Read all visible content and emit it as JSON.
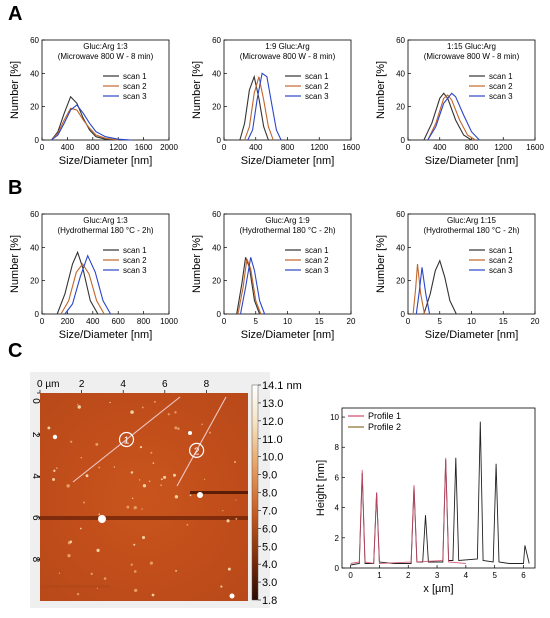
{
  "panels": {
    "a": "A",
    "b": "B",
    "c": "C"
  },
  "colors": {
    "scan1": "#333333",
    "scan2": "#c0662a",
    "scan3": "#2a46c8",
    "profile1": "#d04a6a",
    "profile2": "#8a6a2a"
  },
  "chart_data": [
    {
      "type": "line",
      "panel": "A",
      "title": "Gluc:Arg 1:3",
      "subtitle": "(Microwave 800 W - 8 min)",
      "xlabel": "Size/Diameter [nm]",
      "ylabel": "Number [%]",
      "xlim": [
        0,
        2000
      ],
      "ylim": [
        0,
        60
      ],
      "xticks": [
        "0",
        "400",
        "800",
        "1200",
        "1600",
        "2000"
      ],
      "yticks": [
        "0",
        "20",
        "40",
        "60"
      ],
      "legend_position": "right",
      "series": [
        {
          "name": "scan 1",
          "x": [
            150,
            250,
            350,
            450,
            550,
            650,
            750,
            850,
            1000,
            1200
          ],
          "y": [
            0,
            5,
            16,
            26,
            22,
            13,
            6,
            2,
            0.5,
            0
          ]
        },
        {
          "name": "scan 2",
          "x": [
            150,
            250,
            350,
            450,
            550,
            650,
            750,
            850,
            1000,
            1200
          ],
          "y": [
            0,
            4,
            12,
            19,
            18,
            12,
            7,
            3,
            1,
            0
          ]
        },
        {
          "name": "scan 3",
          "x": [
            150,
            250,
            350,
            450,
            550,
            650,
            750,
            850,
            1000,
            1200,
            1400
          ],
          "y": [
            0,
            3,
            10,
            18,
            21,
            16,
            10,
            5,
            2,
            0.5,
            0
          ]
        }
      ]
    },
    {
      "type": "line",
      "panel": "A",
      "title": "1:9 Gluc:Arg",
      "subtitle": "(Microwave 800 W - 8 min)",
      "xlabel": "Size/Diameter [nm]",
      "ylabel": "Number [%]",
      "xlim": [
        0,
        1600
      ],
      "ylim": [
        0,
        60
      ],
      "xticks": [
        "0",
        "400",
        "800",
        "1200",
        "1600"
      ],
      "yticks": [
        "0",
        "20",
        "40",
        "60"
      ],
      "legend_position": "right",
      "series": [
        {
          "name": "scan 1",
          "x": [
            200,
            260,
            320,
            380,
            440,
            500,
            560
          ],
          "y": [
            0,
            10,
            30,
            38,
            25,
            8,
            0
          ]
        },
        {
          "name": "scan 2",
          "x": [
            260,
            320,
            380,
            440,
            500,
            560,
            620
          ],
          "y": [
            0,
            8,
            28,
            38,
            24,
            8,
            0
          ]
        },
        {
          "name": "scan 3",
          "x": [
            300,
            360,
            420,
            480,
            540,
            600,
            660,
            720
          ],
          "y": [
            0,
            6,
            25,
            40,
            38,
            22,
            6,
            0
          ]
        }
      ]
    },
    {
      "type": "line",
      "panel": "A",
      "title": "1:15 Gluc:Arg",
      "subtitle": "(Microwave 800 W - 8 min)",
      "xlabel": "Size/Diameter [nm]",
      "ylabel": "Number [%]",
      "xlim": [
        0,
        1600
      ],
      "ylim": [
        0,
        60
      ],
      "xticks": [
        "0",
        "400",
        "800",
        "1200",
        "1600"
      ],
      "yticks": [
        "0",
        "20",
        "40",
        "60"
      ],
      "legend_position": "right",
      "series": [
        {
          "name": "scan 1",
          "x": [
            200,
            300,
            400,
            450,
            500,
            600,
            700,
            800
          ],
          "y": [
            0,
            10,
            25,
            28,
            25,
            12,
            3,
            0
          ]
        },
        {
          "name": "scan 2",
          "x": [
            250,
            350,
            450,
            500,
            550,
            650,
            750,
            850
          ],
          "y": [
            0,
            10,
            25,
            27,
            24,
            12,
            3,
            0
          ]
        },
        {
          "name": "scan 3",
          "x": [
            250,
            350,
            450,
            550,
            600,
            700,
            800,
            900
          ],
          "y": [
            0,
            8,
            22,
            28,
            26,
            15,
            5,
            0
          ]
        }
      ]
    },
    {
      "type": "line",
      "panel": "B",
      "title": "Gluc:Arg 1:3",
      "subtitle": "(Hydrothermal 180 °C - 2h)",
      "xlabel": "Size/Diameter [nm]",
      "ylabel": "Number [%]",
      "xlim": [
        0,
        1000
      ],
      "ylim": [
        0,
        60
      ],
      "xticks": [
        "0",
        "200",
        "400",
        "600",
        "800",
        "1000"
      ],
      "yticks": [
        "0",
        "20",
        "40",
        "60"
      ],
      "legend_position": "right",
      "series": [
        {
          "name": "scan 1",
          "x": [
            120,
            180,
            240,
            280,
            320,
            380,
            440
          ],
          "y": [
            0,
            12,
            30,
            37,
            28,
            8,
            0
          ]
        },
        {
          "name": "scan 2",
          "x": [
            150,
            210,
            270,
            320,
            370,
            430,
            490
          ],
          "y": [
            0,
            8,
            25,
            30,
            24,
            8,
            0
          ]
        },
        {
          "name": "scan 3",
          "x": [
            180,
            240,
            300,
            360,
            420,
            480,
            540
          ],
          "y": [
            0,
            6,
            22,
            35,
            25,
            8,
            0
          ]
        }
      ]
    },
    {
      "type": "line",
      "panel": "B",
      "title": "Gluc:Arg 1:9",
      "subtitle": "(Hydrothermal 180 °C - 2h)",
      "xlabel": "Size/Diameter [nm]",
      "ylabel": "Number [%]",
      "xlim": [
        0,
        20
      ],
      "ylim": [
        0,
        60
      ],
      "xticks": [
        "0",
        "5",
        "10",
        "15",
        "20"
      ],
      "yticks": [
        "0",
        "20",
        "40",
        "60"
      ],
      "legend_position": "right",
      "series": [
        {
          "name": "scan 1",
          "x": [
            2,
            2.8,
            3.4,
            4,
            4.8,
            5.6
          ],
          "y": [
            0,
            18,
            34,
            28,
            8,
            0
          ]
        },
        {
          "name": "scan 2",
          "x": [
            2.2,
            3,
            3.6,
            4.2,
            5,
            5.8
          ],
          "y": [
            0,
            16,
            33,
            27,
            8,
            0
          ]
        },
        {
          "name": "scan 3",
          "x": [
            2.6,
            3.4,
            4.2,
            4.8,
            5.6,
            6.4
          ],
          "y": [
            0,
            16,
            34,
            26,
            8,
            0
          ]
        }
      ]
    },
    {
      "type": "line",
      "panel": "B",
      "title": "Gluc:Arg 1:15",
      "subtitle": "(Hydrothermal 180 °C - 2h)",
      "xlabel": "Size/Diameter [nm]",
      "ylabel": "Number [%]",
      "xlim": [
        0,
        20
      ],
      "ylim": [
        0,
        60
      ],
      "xticks": [
        "0",
        "5",
        "10",
        "15",
        "20"
      ],
      "yticks": [
        "0",
        "20",
        "40",
        "60"
      ],
      "legend_position": "right",
      "series": [
        {
          "name": "scan 1",
          "x": [
            2.5,
            3.5,
            4.3,
            5,
            5.8,
            6.6,
            7.6
          ],
          "y": [
            0,
            12,
            26,
            32,
            22,
            8,
            0
          ]
        },
        {
          "name": "scan 2",
          "x": [
            0.8,
            1.2,
            1.5,
            2,
            2.6
          ],
          "y": [
            0,
            15,
            30,
            12,
            0
          ]
        },
        {
          "name": "scan 3",
          "x": [
            1.3,
            1.8,
            2.2,
            2.8,
            3.4
          ],
          "y": [
            0,
            14,
            28,
            12,
            0
          ]
        }
      ]
    },
    {
      "type": "heatmap",
      "panel": "C",
      "name": "AFM height image",
      "xlabel": "µm",
      "xticks": [
        "0",
        "2",
        "4",
        "6",
        "8"
      ],
      "yticks": [
        "0",
        "2",
        "4",
        "6",
        "8"
      ],
      "colorbar_ticks": [
        "14.1 nm",
        "13.0",
        "12.0",
        "11.0",
        "10.0",
        "9.0",
        "8.0",
        "7.0",
        "6.0",
        "5.0",
        "4.0",
        "3.0",
        "1.8"
      ],
      "profile_markers": [
        "1",
        "2"
      ]
    },
    {
      "type": "line",
      "panel": "C",
      "name": "Height profiles",
      "xlabel": "x [µm]",
      "ylabel": "Height [nm]",
      "xlim": [
        -0.3,
        6.4
      ],
      "ylim": [
        0,
        10.6
      ],
      "xticks": [
        "0",
        "1",
        "2",
        "3",
        "4",
        "5",
        "6"
      ],
      "yticks": [
        "0",
        "2",
        "4",
        "6",
        "8",
        "10"
      ],
      "legend_position": "top-left",
      "series": [
        {
          "name": "Profile 1",
          "x": [
            0,
            0.3,
            0.4,
            0.5,
            0.8,
            0.9,
            1.0,
            2.1,
            2.2,
            2.3,
            3.2,
            3.3,
            3.4,
            4.0
          ],
          "y": [
            0.3,
            0.4,
            6.5,
            0.4,
            0.3,
            5.0,
            0.3,
            0.4,
            5.5,
            0.4,
            0.5,
            7.3,
            0.4,
            0.3
          ]
        },
        {
          "name": "Profile 2",
          "x": [
            0,
            0.3,
            0.4,
            0.5,
            0.8,
            0.9,
            1.0,
            1.5,
            2.1,
            2.2,
            2.3,
            2.5,
            2.6,
            2.7,
            3.2,
            3.3,
            3.4,
            3.55,
            3.65,
            3.75,
            4.4,
            4.5,
            4.6,
            4.95,
            5.05,
            5.15,
            5.5,
            6.0,
            6.05,
            6.2
          ],
          "y": [
            0.2,
            0.3,
            6.3,
            0.3,
            0.3,
            5.0,
            0.4,
            0.3,
            0.3,
            5.4,
            0.4,
            0.4,
            3.5,
            0.4,
            0.4,
            7.2,
            0.5,
            0.5,
            7.3,
            0.5,
            0.6,
            9.7,
            0.5,
            0.4,
            6.9,
            0.4,
            0.3,
            0.3,
            1.5,
            0.3
          ]
        }
      ]
    }
  ]
}
